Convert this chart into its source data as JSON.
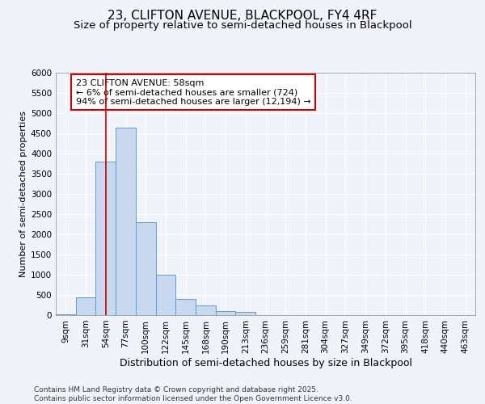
{
  "title1": "23, CLIFTON AVENUE, BLACKPOOL, FY4 4RF",
  "title2": "Size of property relative to semi-detached houses in Blackpool",
  "xlabel": "Distribution of semi-detached houses by size in Blackpool",
  "ylabel": "Number of semi-detached properties",
  "categories": [
    "9sqm",
    "31sqm",
    "54sqm",
    "77sqm",
    "100sqm",
    "122sqm",
    "145sqm",
    "168sqm",
    "190sqm",
    "213sqm",
    "236sqm",
    "259sqm",
    "281sqm",
    "304sqm",
    "327sqm",
    "349sqm",
    "372sqm",
    "395sqm",
    "418sqm",
    "440sqm",
    "463sqm"
  ],
  "values": [
    30,
    450,
    3800,
    4650,
    2300,
    1000,
    400,
    240,
    100,
    80,
    0,
    0,
    0,
    0,
    0,
    0,
    0,
    0,
    0,
    0,
    0
  ],
  "bar_color": "#c8d8ee",
  "bar_edge_color": "#6699cc",
  "vline_x": 2,
  "vline_color": "#cc0000",
  "annotation_text": "23 CLIFTON AVENUE: 58sqm\n← 6% of semi-detached houses are smaller (724)\n94% of semi-detached houses are larger (12,194) →",
  "annotation_box_color": "#ffffff",
  "annotation_box_edgecolor": "#cc0000",
  "ylim": [
    0,
    6000
  ],
  "yticks": [
    0,
    500,
    1000,
    1500,
    2000,
    2500,
    3000,
    3500,
    4000,
    4500,
    5000,
    5500,
    6000
  ],
  "bg_color": "#f0f4fa",
  "plot_bg_color": "#f0f4fa",
  "footer": "Contains HM Land Registry data © Crown copyright and database right 2025.\nContains public sector information licensed under the Open Government Licence v3.0.",
  "title1_fontsize": 11,
  "title2_fontsize": 9.5,
  "xlabel_fontsize": 9,
  "ylabel_fontsize": 8,
  "tick_fontsize": 7.5,
  "annotation_fontsize": 8,
  "footer_fontsize": 6.5
}
